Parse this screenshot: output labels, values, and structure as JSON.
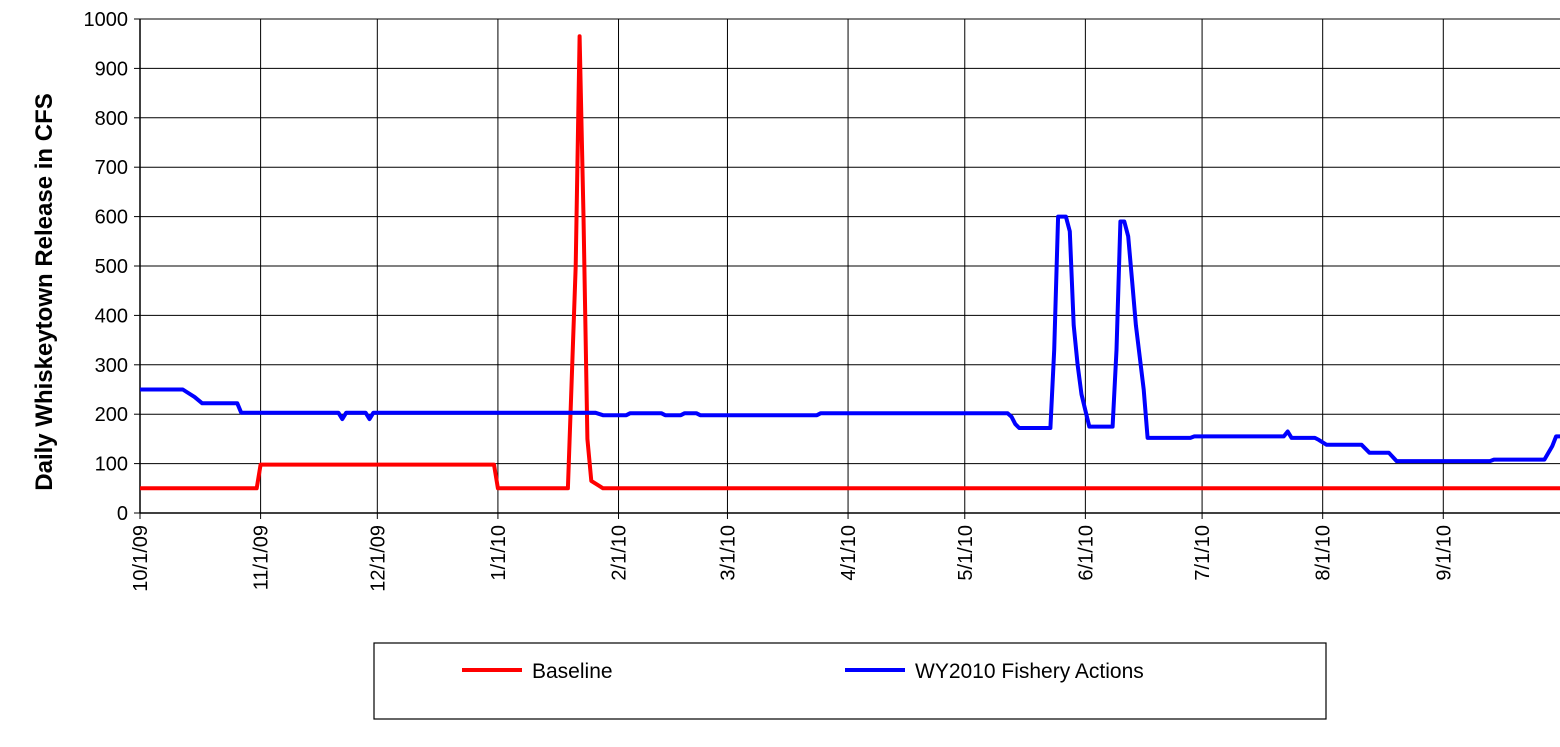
{
  "chart_data": {
    "type": "line",
    "title": "",
    "xlabel": "",
    "ylabel": "Daily Whiskeytown Release in CFS",
    "ylim": [
      0,
      1000
    ],
    "y_ticks": [
      0,
      100,
      200,
      300,
      400,
      500,
      600,
      700,
      800,
      900,
      1000
    ],
    "x_range": [
      "2009-10-01",
      "2010-09-30"
    ],
    "x_tick_labels": [
      "10/1/09",
      "11/1/09",
      "12/1/09",
      "1/1/10",
      "2/1/10",
      "3/1/10",
      "4/1/10",
      "5/1/10",
      "6/1/10",
      "7/1/10",
      "8/1/10",
      "9/1/10"
    ],
    "x_tick_dates": [
      "2009-10-01",
      "2009-11-01",
      "2009-12-01",
      "2010-01-01",
      "2010-02-01",
      "2010-03-01",
      "2010-04-01",
      "2010-05-01",
      "2010-06-01",
      "2010-07-01",
      "2010-08-01",
      "2010-09-01"
    ],
    "grid": true,
    "legend_position": "bottom",
    "series": [
      {
        "name": "Baseline",
        "color": "#ff0000",
        "points": [
          [
            "2009-10-01",
            50
          ],
          [
            "2009-10-31",
            50
          ],
          [
            "2009-11-01",
            98
          ],
          [
            "2009-12-31",
            98
          ],
          [
            "2010-01-01",
            50
          ],
          [
            "2010-01-19",
            50
          ],
          [
            "2010-01-21",
            500
          ],
          [
            "2010-01-22",
            965
          ],
          [
            "2010-01-23",
            600
          ],
          [
            "2010-01-24",
            150
          ],
          [
            "2010-01-25",
            65
          ],
          [
            "2010-01-27",
            55
          ],
          [
            "2010-01-28",
            50
          ],
          [
            "2010-09-30",
            50
          ]
        ]
      },
      {
        "name": "WY2010 Fishery Actions",
        "color": "#0000ff",
        "points": [
          [
            "2009-10-01",
            250
          ],
          [
            "2009-10-12",
            250
          ],
          [
            "2009-10-13",
            245
          ],
          [
            "2009-10-15",
            235
          ],
          [
            "2009-10-17",
            222
          ],
          [
            "2009-10-26",
            222
          ],
          [
            "2009-10-27",
            203
          ],
          [
            "2009-11-21",
            203
          ],
          [
            "2009-11-22",
            190
          ],
          [
            "2009-11-23",
            203
          ],
          [
            "2009-11-28",
            203
          ],
          [
            "2009-11-29",
            190
          ],
          [
            "2009-11-30",
            203
          ],
          [
            "2010-01-26",
            203
          ],
          [
            "2010-01-28",
            198
          ],
          [
            "2010-02-03",
            198
          ],
          [
            "2010-02-04",
            202
          ],
          [
            "2010-02-12",
            202
          ],
          [
            "2010-02-13",
            198
          ],
          [
            "2010-02-17",
            198
          ],
          [
            "2010-02-18",
            202
          ],
          [
            "2010-02-21",
            202
          ],
          [
            "2010-02-22",
            198
          ],
          [
            "2010-03-24",
            198
          ],
          [
            "2010-03-25",
            202
          ],
          [
            "2010-05-12",
            202
          ],
          [
            "2010-05-13",
            195
          ],
          [
            "2010-05-14",
            180
          ],
          [
            "2010-05-15",
            172
          ],
          [
            "2010-05-23",
            172
          ],
          [
            "2010-05-24",
            330
          ],
          [
            "2010-05-25",
            600
          ],
          [
            "2010-05-27",
            600
          ],
          [
            "2010-05-28",
            570
          ],
          [
            "2010-05-29",
            380
          ],
          [
            "2010-05-30",
            300
          ],
          [
            "2010-05-31",
            240
          ],
          [
            "2010-06-02",
            175
          ],
          [
            "2010-06-08",
            175
          ],
          [
            "2010-06-09",
            330
          ],
          [
            "2010-06-10",
            590
          ],
          [
            "2010-06-11",
            590
          ],
          [
            "2010-06-12",
            560
          ],
          [
            "2010-06-13",
            470
          ],
          [
            "2010-06-14",
            380
          ],
          [
            "2010-06-16",
            250
          ],
          [
            "2010-06-17",
            152
          ],
          [
            "2010-06-28",
            152
          ],
          [
            "2010-06-29",
            155
          ],
          [
            "2010-07-22",
            155
          ],
          [
            "2010-07-23",
            165
          ],
          [
            "2010-07-24",
            152
          ],
          [
            "2010-07-30",
            152
          ],
          [
            "2010-07-31",
            148
          ],
          [
            "2010-08-02",
            138
          ],
          [
            "2010-08-11",
            138
          ],
          [
            "2010-08-13",
            122
          ],
          [
            "2010-08-18",
            122
          ],
          [
            "2010-08-20",
            105
          ],
          [
            "2010-09-13",
            105
          ],
          [
            "2010-09-14",
            108
          ],
          [
            "2010-09-27",
            108
          ],
          [
            "2010-09-29",
            135
          ],
          [
            "2010-09-30",
            155
          ]
        ]
      }
    ]
  }
}
